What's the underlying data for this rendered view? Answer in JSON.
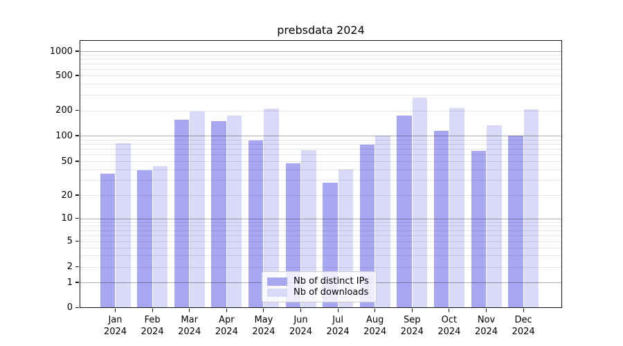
{
  "chart_data": {
    "type": "bar",
    "title": "prebsdata 2024",
    "categories": [
      "Jan 2024",
      "Feb 2024",
      "Mar 2024",
      "Apr 2024",
      "May 2024",
      "Jun 2024",
      "Jul 2024",
      "Aug 2024",
      "Sep 2024",
      "Oct 2024",
      "Nov 2024",
      "Dec 2024"
    ],
    "months": [
      "Jan",
      "Feb",
      "Mar",
      "Apr",
      "May",
      "Jun",
      "Jul",
      "Aug",
      "Sep",
      "Oct",
      "Nov",
      "Dec"
    ],
    "year_label": "2024",
    "series": [
      {
        "name": "Nb of distinct IPs",
        "color": "#a7a7f2",
        "values": [
          36,
          39,
          155,
          150,
          87,
          47,
          28,
          78,
          172,
          115,
          66,
          100
        ]
      },
      {
        "name": "Nb of downloads",
        "color": "#d9d9f8",
        "values": [
          82,
          44,
          195,
          175,
          210,
          68,
          40,
          100,
          280,
          215,
          133,
          205
        ]
      }
    ],
    "yscale": "log",
    "ylabel": "",
    "xlabel": "",
    "y_ticks": [
      0,
      1,
      2,
      5,
      10,
      20,
      50,
      100,
      200,
      500,
      1000
    ],
    "ylim": [
      0,
      1350
    ],
    "grid": true,
    "legend_position": "lower center"
  }
}
